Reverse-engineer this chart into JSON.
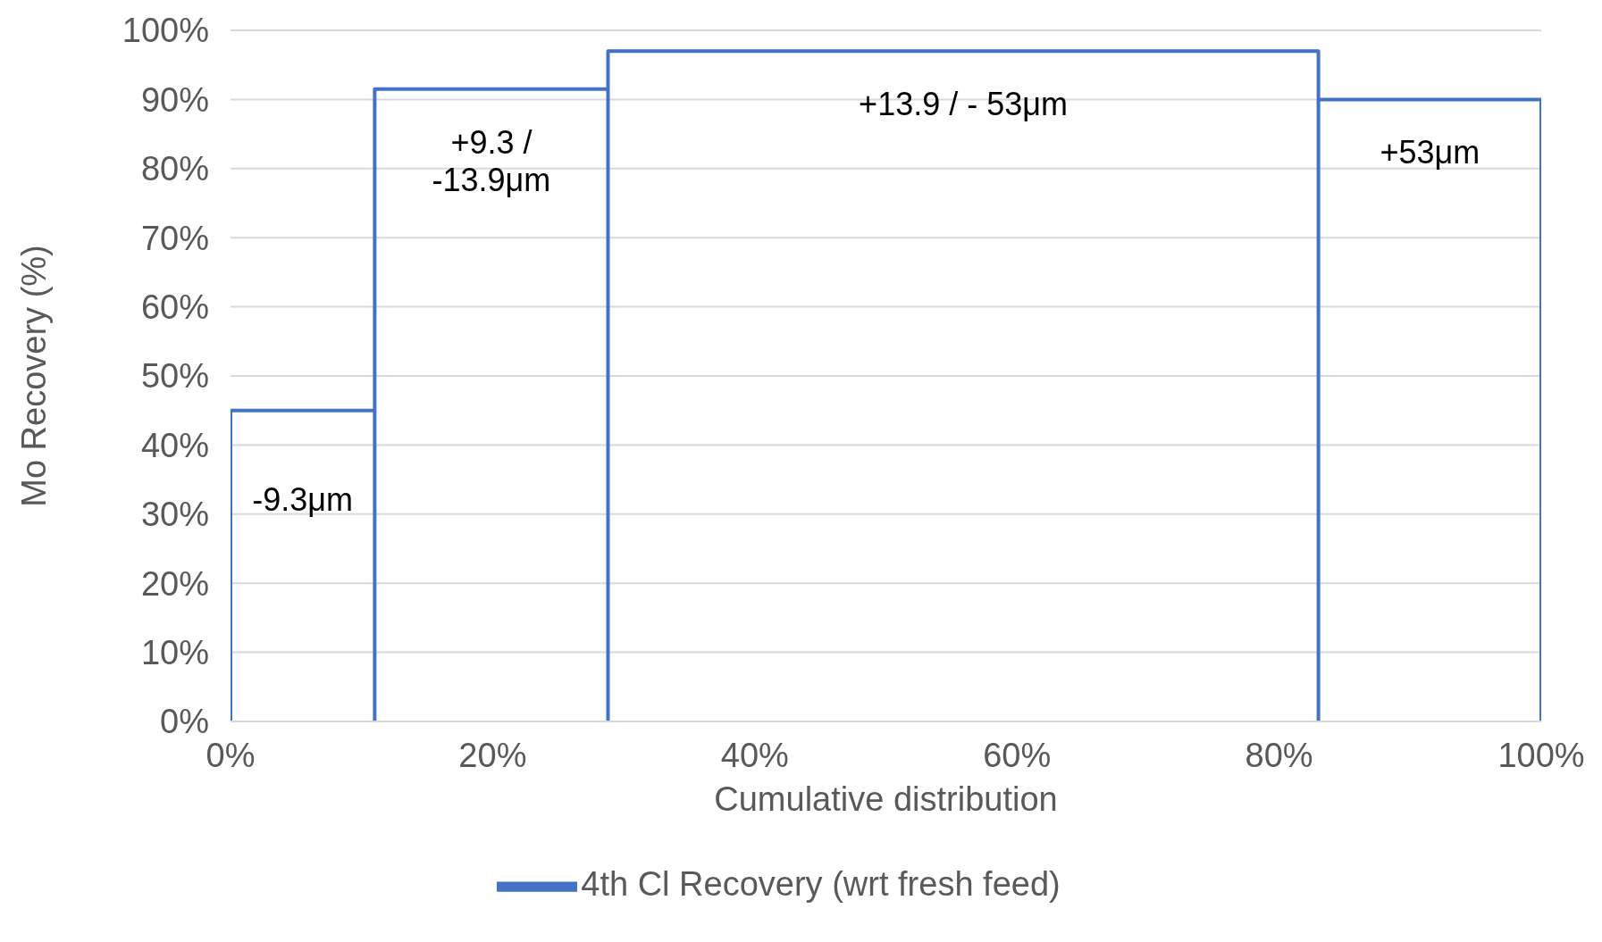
{
  "chart_data": {
    "type": "line",
    "xlabel": "Cumulative distribution",
    "ylabel": "Mo Recovery (%)",
    "series": [
      {
        "name": "4th Cl Recovery (wrt fresh feed)",
        "color": "#4472c4",
        "x": [
          0,
          0,
          11,
          11,
          11,
          28.8,
          28.8,
          28.8,
          83,
          83,
          83,
          100,
          100
        ],
        "values": [
          0,
          45,
          45,
          0,
          91.5,
          91.5,
          0,
          97,
          97,
          0,
          90,
          90,
          0
        ]
      }
    ],
    "xlim": [
      0,
      100
    ],
    "ylim": [
      0,
      100
    ],
    "xticks": [
      {
        "value": 0,
        "label": "0%"
      },
      {
        "value": 20,
        "label": "20%"
      },
      {
        "value": 40,
        "label": "40%"
      },
      {
        "value": 60,
        "label": "60%"
      },
      {
        "value": 80,
        "label": "80%"
      },
      {
        "value": 100,
        "label": "100%"
      }
    ],
    "yticks": [
      {
        "value": 0,
        "label": "0%"
      },
      {
        "value": 10,
        "label": "10%"
      },
      {
        "value": 20,
        "label": "20%"
      },
      {
        "value": 30,
        "label": "30%"
      },
      {
        "value": 40,
        "label": "40%"
      },
      {
        "value": 50,
        "label": "50%"
      },
      {
        "value": 60,
        "label": "60%"
      },
      {
        "value": 70,
        "label": "70%"
      },
      {
        "value": 80,
        "label": "80%"
      },
      {
        "value": 90,
        "label": "90%"
      },
      {
        "value": 100,
        "label": "100%"
      }
    ],
    "grid": "y",
    "legend": "bottom",
    "marker": "none",
    "line_style": "solid",
    "annotations": [
      "-9.3μm",
      "+9.3 /\n-13.9μm",
      "+13.9 / - 53μm",
      "+53μm"
    ]
  }
}
